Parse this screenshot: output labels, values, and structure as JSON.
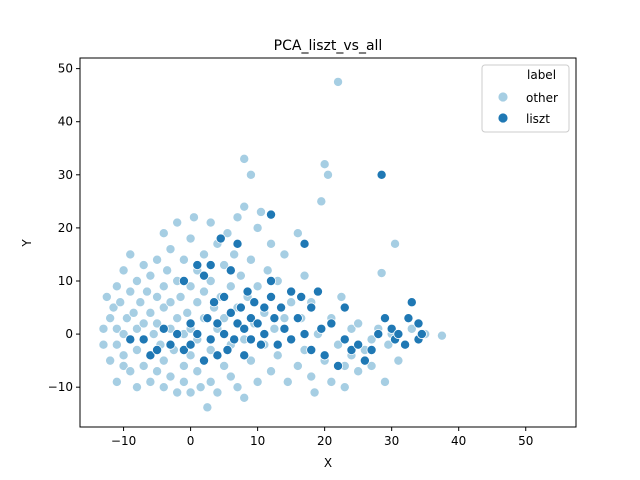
{
  "chart_data": {
    "type": "scatter",
    "title": "PCA_liszt_vs_all",
    "xlabel": "X",
    "ylabel": "Y",
    "xlim": [
      -16.5,
      57.5
    ],
    "ylim": [
      -17.5,
      52
    ],
    "xticks": [
      -10,
      0,
      10,
      20,
      30,
      40,
      50
    ],
    "yticks": [
      -10,
      0,
      10,
      20,
      30,
      40,
      50
    ],
    "grid": false,
    "legend": {
      "title": "label",
      "placement": "top-right",
      "entries": [
        "other",
        "liszt"
      ]
    },
    "colors": {
      "other": "#a6cee3",
      "liszt": "#1f78b4",
      "edge": "#ffffff"
    },
    "series": [
      {
        "name": "other",
        "points": [
          [
            -13,
            1
          ],
          [
            -13,
            -2
          ],
          [
            -12.5,
            7
          ],
          [
            -12,
            -5
          ],
          [
            -12,
            3
          ],
          [
            -11.5,
            5
          ],
          [
            -11,
            9
          ],
          [
            -11,
            -9
          ],
          [
            -11,
            -2
          ],
          [
            -11,
            1
          ],
          [
            -10.5,
            6
          ],
          [
            -10,
            -6
          ],
          [
            -10,
            12
          ],
          [
            -10,
            0
          ],
          [
            -10,
            -4
          ],
          [
            -9.5,
            3
          ],
          [
            -9,
            15
          ],
          [
            -9,
            8
          ],
          [
            -9,
            -7
          ],
          [
            -9,
            -1
          ],
          [
            -8.5,
            4
          ],
          [
            -8,
            10
          ],
          [
            -8,
            -10
          ],
          [
            -8,
            1
          ],
          [
            -8,
            -3
          ],
          [
            -7.5,
            6
          ],
          [
            -7,
            13
          ],
          [
            -7,
            -6
          ],
          [
            -7,
            2
          ],
          [
            -7,
            -1
          ],
          [
            -6.5,
            8
          ],
          [
            -6,
            -9
          ],
          [
            -6,
            4
          ],
          [
            -6,
            11
          ],
          [
            -6,
            -4
          ],
          [
            -5.5,
            0
          ],
          [
            -5,
            14
          ],
          [
            -5,
            7
          ],
          [
            -5,
            -7
          ],
          [
            -5,
            2
          ],
          [
            -4.5,
            -2
          ],
          [
            -4,
            19
          ],
          [
            -4,
            9
          ],
          [
            -4,
            -10
          ],
          [
            -4,
            5
          ],
          [
            -4,
            -5
          ],
          [
            -3.5,
            12
          ],
          [
            -3,
            1
          ],
          [
            -3,
            -8
          ],
          [
            -3,
            6
          ],
          [
            -3,
            16
          ],
          [
            -2.5,
            -3
          ],
          [
            -2,
            10
          ],
          [
            -2,
            -11
          ],
          [
            -2,
            3
          ],
          [
            -2,
            21
          ],
          [
            -1.5,
            7
          ],
          [
            -1,
            -6
          ],
          [
            -1,
            14
          ],
          [
            -1,
            0
          ],
          [
            -1,
            -9
          ],
          [
            -0.5,
            4
          ],
          [
            0,
            18
          ],
          [
            0,
            -4
          ],
          [
            0,
            9
          ],
          [
            0,
            -11
          ],
          [
            0,
            1
          ],
          [
            0.5,
            22
          ],
          [
            1,
            6
          ],
          [
            1,
            -7
          ],
          [
            1,
            12
          ],
          [
            1,
            -1
          ],
          [
            1.5,
            -10
          ],
          [
            2,
            3
          ],
          [
            2,
            15
          ],
          [
            2,
            -5
          ],
          [
            2,
            8
          ],
          [
            2.5,
            -13.8
          ],
          [
            3,
            21
          ],
          [
            3,
            -3
          ],
          [
            3,
            10
          ],
          [
            3,
            -9
          ],
          [
            3.5,
            5
          ],
          [
            4,
            17
          ],
          [
            4,
            -11
          ],
          [
            4,
            1
          ],
          [
            4.5,
            7
          ],
          [
            5,
            -6
          ],
          [
            5,
            13
          ],
          [
            5,
            3
          ],
          [
            5.5,
            19
          ],
          [
            6,
            -8
          ],
          [
            6,
            9
          ],
          [
            6,
            -2
          ],
          [
            6.5,
            15
          ],
          [
            7,
            22
          ],
          [
            7,
            -10
          ],
          [
            7,
            5
          ],
          [
            7.5,
            11
          ],
          [
            8,
            -1
          ],
          [
            8,
            33
          ],
          [
            8,
            24
          ],
          [
            8,
            -12
          ],
          [
            8.5,
            7
          ],
          [
            9,
            14
          ],
          [
            9,
            -5
          ],
          [
            9,
            30
          ],
          [
            9.5,
            2
          ],
          [
            10,
            20
          ],
          [
            10,
            9
          ],
          [
            10,
            -9
          ],
          [
            10.5,
            23
          ],
          [
            11,
            4
          ],
          [
            11,
            -2
          ],
          [
            11.5,
            12
          ],
          [
            12,
            17
          ],
          [
            12,
            -7
          ],
          [
            12.5,
            1
          ],
          [
            13,
            10
          ],
          [
            13,
            -4
          ],
          [
            14,
            3
          ],
          [
            14,
            15
          ],
          [
            14.5,
            -9
          ],
          [
            15,
            6
          ],
          [
            15,
            -1
          ],
          [
            16,
            19
          ],
          [
            16,
            -6
          ],
          [
            16.5,
            3
          ],
          [
            17,
            11
          ],
          [
            17,
            -3
          ],
          [
            18,
            -8
          ],
          [
            18,
            6
          ],
          [
            18.5,
            -11
          ],
          [
            19,
            0
          ],
          [
            19.5,
            25
          ],
          [
            20,
            32
          ],
          [
            20,
            -5
          ],
          [
            20.5,
            30
          ],
          [
            21,
            3
          ],
          [
            21,
            -9
          ],
          [
            22,
            47.5
          ],
          [
            22,
            -2
          ],
          [
            22.5,
            7
          ],
          [
            23,
            -6
          ],
          [
            23,
            -10
          ],
          [
            24,
            1
          ],
          [
            24,
            -4
          ],
          [
            25,
            -7
          ],
          [
            25,
            2
          ],
          [
            26,
            -3
          ],
          [
            27,
            -1
          ],
          [
            27,
            -6
          ],
          [
            28,
            1
          ],
          [
            28.5,
            11.5
          ],
          [
            29,
            -9
          ],
          [
            29.5,
            -2
          ],
          [
            30,
            0
          ],
          [
            30.5,
            17
          ],
          [
            31,
            -5
          ],
          [
            32,
            -2
          ],
          [
            33,
            1
          ],
          [
            34,
            -1
          ],
          [
            35,
            0
          ],
          [
            37.5,
            -0.3
          ]
        ]
      },
      {
        "name": "liszt",
        "points": [
          [
            -9,
            -1
          ],
          [
            -7,
            -1
          ],
          [
            -6,
            -4
          ],
          [
            -5,
            -3
          ],
          [
            -4,
            1
          ],
          [
            -3,
            -2
          ],
          [
            -2,
            0
          ],
          [
            -1,
            -3
          ],
          [
            -1,
            10
          ],
          [
            0,
            2
          ],
          [
            0,
            -2
          ],
          [
            1,
            13
          ],
          [
            1,
            0
          ],
          [
            2,
            -5
          ],
          [
            2,
            11
          ],
          [
            2.5,
            3
          ],
          [
            3,
            -1
          ],
          [
            3,
            13
          ],
          [
            3.5,
            6
          ],
          [
            4,
            2
          ],
          [
            4,
            -4
          ],
          [
            4.5,
            18
          ],
          [
            5,
            0
          ],
          [
            5,
            7
          ],
          [
            5.5,
            -3
          ],
          [
            6,
            4
          ],
          [
            6,
            12
          ],
          [
            6.5,
            -1
          ],
          [
            7,
            17
          ],
          [
            7,
            2
          ],
          [
            7.5,
            5
          ],
          [
            8,
            -4
          ],
          [
            8,
            1
          ],
          [
            8.5,
            8
          ],
          [
            9,
            3
          ],
          [
            9,
            -1
          ],
          [
            9.5,
            6
          ],
          [
            10,
            2
          ],
          [
            10.5,
            -2
          ],
          [
            11,
            5
          ],
          [
            11,
            0
          ],
          [
            12,
            22.5
          ],
          [
            12,
            10
          ],
          [
            12,
            7
          ],
          [
            12.5,
            3
          ],
          [
            13,
            -2
          ],
          [
            13.5,
            5
          ],
          [
            14,
            1
          ],
          [
            15,
            8
          ],
          [
            15,
            -1
          ],
          [
            16,
            3
          ],
          [
            16.5,
            7
          ],
          [
            17,
            17
          ],
          [
            17,
            0
          ],
          [
            18,
            5
          ],
          [
            18,
            -3
          ],
          [
            19,
            8
          ],
          [
            19.5,
            1
          ],
          [
            20,
            -4
          ],
          [
            21,
            2
          ],
          [
            22,
            -6
          ],
          [
            23,
            5
          ],
          [
            23,
            -1
          ],
          [
            24,
            -3
          ],
          [
            25,
            -2
          ],
          [
            26,
            -5
          ],
          [
            27,
            -3
          ],
          [
            28,
            0
          ],
          [
            28.5,
            30
          ],
          [
            29,
            3
          ],
          [
            30,
            1
          ],
          [
            30.5,
            -1
          ],
          [
            31,
            0
          ],
          [
            32,
            -2
          ],
          [
            32.5,
            3
          ],
          [
            33,
            6
          ],
          [
            34,
            -1
          ],
          [
            34,
            2
          ],
          [
            34.5,
            0
          ]
        ]
      }
    ]
  }
}
